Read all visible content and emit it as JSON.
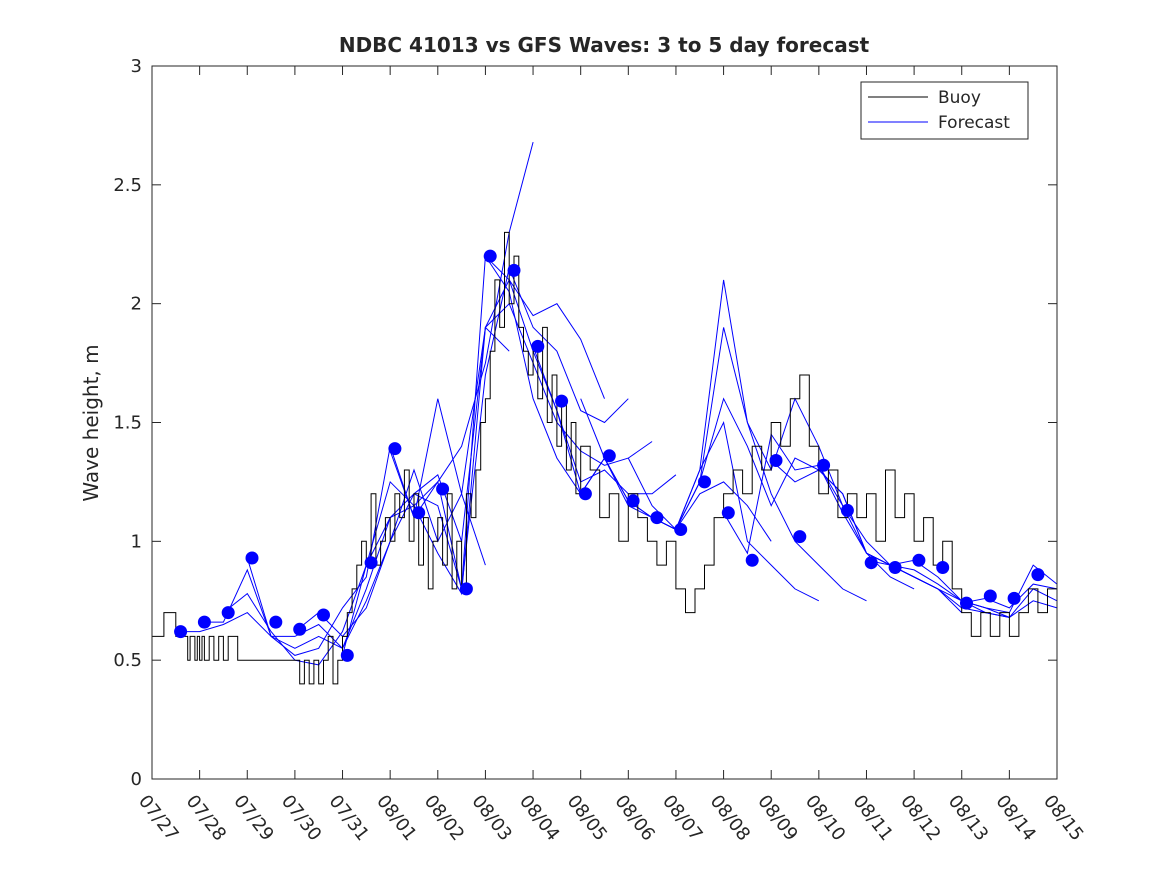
{
  "chart_data": {
    "type": "line",
    "title": "NDBC 41013 vs GFS Waves: 3 to 5 day forecast",
    "xlabel": "",
    "ylabel": "Wave height, m",
    "xlim": [
      0,
      19
    ],
    "ylim": [
      0,
      3
    ],
    "grid": false,
    "legend_position": "top-right",
    "x_ticks": [
      {
        "x": 0,
        "label": "07/27"
      },
      {
        "x": 1,
        "label": "07/28"
      },
      {
        "x": 2,
        "label": "07/29"
      },
      {
        "x": 3,
        "label": "07/30"
      },
      {
        "x": 4,
        "label": "07/31"
      },
      {
        "x": 5,
        "label": "08/01"
      },
      {
        "x": 6,
        "label": "08/02"
      },
      {
        "x": 7,
        "label": "08/03"
      },
      {
        "x": 8,
        "label": "08/04"
      },
      {
        "x": 9,
        "label": "08/05"
      },
      {
        "x": 10,
        "label": "08/06"
      },
      {
        "x": 11,
        "label": "08/07"
      },
      {
        "x": 12,
        "label": "08/08"
      },
      {
        "x": 13,
        "label": "08/09"
      },
      {
        "x": 14,
        "label": "08/10"
      },
      {
        "x": 15,
        "label": "08/11"
      },
      {
        "x": 16,
        "label": "08/12"
      },
      {
        "x": 17,
        "label": "08/13"
      },
      {
        "x": 18,
        "label": "08/14"
      },
      {
        "x": 19,
        "label": "08/15"
      }
    ],
    "y_ticks": [
      {
        "y": 0,
        "label": "0"
      },
      {
        "y": 0.5,
        "label": "0.5"
      },
      {
        "y": 1,
        "label": "1"
      },
      {
        "y": 1.5,
        "label": "1.5"
      },
      {
        "y": 2,
        "label": "2"
      },
      {
        "y": 2.5,
        "label": "2.5"
      },
      {
        "y": 3,
        "label": "3"
      }
    ],
    "legend": [
      {
        "label": "Buoy",
        "color": "#000000"
      },
      {
        "label": "Forecast",
        "color": "#0000ff"
      }
    ],
    "buoy": {
      "color": "#000000",
      "x": [
        0,
        0.25,
        0.5,
        0.7,
        0.75,
        0.8,
        0.9,
        0.95,
        1.0,
        1.05,
        1.1,
        1.2,
        1.3,
        1.4,
        1.5,
        1.6,
        1.8,
        2.0,
        2.2,
        2.5,
        2.8,
        3.0,
        3.1,
        3.2,
        3.3,
        3.4,
        3.5,
        3.6,
        3.7,
        3.8,
        3.9,
        4.0,
        4.1,
        4.2,
        4.3,
        4.4,
        4.5,
        4.6,
        4.7,
        4.8,
        4.9,
        5.0,
        5.1,
        5.2,
        5.3,
        5.4,
        5.5,
        5.6,
        5.7,
        5.8,
        5.9,
        6.0,
        6.1,
        6.2,
        6.3,
        6.4,
        6.5,
        6.6,
        6.7,
        6.8,
        6.9,
        7.0,
        7.1,
        7.2,
        7.3,
        7.4,
        7.5,
        7.6,
        7.7,
        7.8,
        7.9,
        8.0,
        8.1,
        8.2,
        8.3,
        8.4,
        8.5,
        8.6,
        8.7,
        8.8,
        8.9,
        9.0,
        9.2,
        9.4,
        9.6,
        9.8,
        10.0,
        10.2,
        10.4,
        10.6,
        10.8,
        11.0,
        11.2,
        11.4,
        11.6,
        11.8,
        12.0,
        12.2,
        12.4,
        12.6,
        12.8,
        13.0,
        13.2,
        13.4,
        13.6,
        13.8,
        14.0,
        14.2,
        14.4,
        14.6,
        14.8,
        15.0,
        15.2,
        15.4,
        15.6,
        15.8,
        16.0,
        16.2,
        16.4,
        16.6,
        16.8,
        17.0,
        17.2,
        17.4,
        17.6,
        17.8,
        18.0,
        18.2,
        18.4,
        18.6,
        18.8,
        19.0
      ],
      "y": [
        0.6,
        0.7,
        0.6,
        0.6,
        0.5,
        0.6,
        0.5,
        0.6,
        0.5,
        0.6,
        0.5,
        0.6,
        0.5,
        0.6,
        0.5,
        0.6,
        0.5,
        0.5,
        0.5,
        0.5,
        0.5,
        0.5,
        0.4,
        0.5,
        0.4,
        0.5,
        0.4,
        0.5,
        0.6,
        0.4,
        0.5,
        0.6,
        0.7,
        0.8,
        0.9,
        1.0,
        0.9,
        1.2,
        0.9,
        1.0,
        1.1,
        1.0,
        1.2,
        1.1,
        1.3,
        1.0,
        1.2,
        0.9,
        1.1,
        0.8,
        1.0,
        1.1,
        0.9,
        1.2,
        0.8,
        1.0,
        0.8,
        1.2,
        1.1,
        1.3,
        1.5,
        1.6,
        1.8,
        2.1,
        1.9,
        2.3,
        2.0,
        2.2,
        1.9,
        1.8,
        1.7,
        1.8,
        1.6,
        1.9,
        1.5,
        1.7,
        1.4,
        1.6,
        1.3,
        1.5,
        1.2,
        1.4,
        1.3,
        1.1,
        1.2,
        1.0,
        1.2,
        1.1,
        1.0,
        0.9,
        1.0,
        0.8,
        0.7,
        0.8,
        0.9,
        1.1,
        1.2,
        1.3,
        1.2,
        1.4,
        1.3,
        1.5,
        1.4,
        1.6,
        1.7,
        1.4,
        1.2,
        1.3,
        1.1,
        1.2,
        1.1,
        1.2,
        1.0,
        1.3,
        1.1,
        1.2,
        1.0,
        1.1,
        0.9,
        1.0,
        0.8,
        0.7,
        0.6,
        0.7,
        0.6,
        0.7,
        0.6,
        0.7,
        0.8,
        0.7,
        0.8,
        0.7
      ]
    },
    "forecasts": [
      {
        "x": [
          0.5,
          1.0,
          1.5,
          2.0,
          2.5,
          3.0,
          3.5,
          4.0,
          4.5,
          5.0,
          5.5,
          6.0,
          6.5,
          7.0
        ],
        "y": [
          0.62,
          0.62,
          0.65,
          0.7,
          0.6,
          0.55,
          0.6,
          0.55,
          0.75,
          1.0,
          1.3,
          1.0,
          1.2,
          0.9
        ]
      },
      {
        "x": [
          1.0,
          1.5,
          2.0,
          2.5,
          3.0,
          3.5,
          4.0,
          4.5,
          5.0,
          5.5,
          6.0,
          6.5,
          7.0,
          7.5
        ],
        "y": [
          0.66,
          0.66,
          0.88,
          0.6,
          0.52,
          0.55,
          0.72,
          0.85,
          1.4,
          1.1,
          1.6,
          1.2,
          1.9,
          1.8
        ]
      },
      {
        "x": [
          1.5,
          2.0,
          2.5,
          3.0,
          3.5,
          4.0,
          4.5,
          5.0,
          5.5,
          6.0,
          6.5,
          7.0,
          7.5,
          8.0
        ],
        "y": [
          0.7,
          0.78,
          0.62,
          0.5,
          0.48,
          0.62,
          0.9,
          1.25,
          1.15,
          1.25,
          1.4,
          1.75,
          2.3,
          2.68
        ]
      },
      {
        "x": [
          2.0,
          2.5,
          3.0,
          3.5,
          4.0,
          4.5,
          5.0,
          5.5,
          6.0,
          6.5,
          7.0,
          7.5,
          8.0,
          8.5,
          9.0,
          9.5
        ],
        "y": [
          0.93,
          0.6,
          0.6,
          0.65,
          0.55,
          0.8,
          1.1,
          1.15,
          0.95,
          0.78,
          1.9,
          2.1,
          1.95,
          2.0,
          1.85,
          1.6
        ]
      },
      {
        "x": [
          3.0,
          3.5,
          4.0,
          4.5,
          5.0,
          5.5,
          6.0,
          6.5,
          7.0,
          7.5,
          8.0,
          8.5,
          9.0,
          9.5,
          10.0
        ],
        "y": [
          0.62,
          0.7,
          0.6,
          0.72,
          1.0,
          1.2,
          1.15,
          0.8,
          1.7,
          2.15,
          1.9,
          1.8,
          1.55,
          1.5,
          1.6
        ]
      },
      {
        "x": [
          4.0,
          4.5,
          5.0,
          5.5,
          6.0,
          6.5,
          7.0,
          7.5,
          8.0,
          8.5,
          9.0,
          9.5,
          10.0,
          10.5
        ],
        "y": [
          0.52,
          0.9,
          1.1,
          1.2,
          1.28,
          1.0,
          1.9,
          2.0,
          1.75,
          1.5,
          1.38,
          1.32,
          1.35,
          1.42
        ]
      },
      {
        "x": [
          5.0,
          5.5,
          6.0,
          6.5,
          7.0,
          7.5,
          8.0,
          8.5,
          9.0,
          9.5,
          10.0,
          10.5,
          11.0
        ],
        "y": [
          1.38,
          1.1,
          1.25,
          0.8,
          2.2,
          2.1,
          1.8,
          1.55,
          1.25,
          1.3,
          1.2,
          1.2,
          1.28
        ]
      },
      {
        "x": [
          7.0,
          7.5,
          8.0,
          8.5,
          9.0,
          9.5,
          10.0,
          10.5,
          11.0,
          11.5,
          12.0,
          12.5,
          13.0
        ],
        "y": [
          2.2,
          2.05,
          1.6,
          1.35,
          1.2,
          1.35,
          1.15,
          1.1,
          1.05,
          1.2,
          1.25,
          1.15,
          1.0
        ]
      },
      {
        "x": [
          8.0,
          8.5,
          9.0,
          9.5,
          10.0,
          10.5,
          11.0,
          11.5,
          12.0,
          12.5,
          13.0,
          13.5,
          14.0
        ],
        "y": [
          1.82,
          1.55,
          1.2,
          1.35,
          1.17,
          1.1,
          1.05,
          1.3,
          1.5,
          1.0,
          0.9,
          0.8,
          0.75
        ]
      },
      {
        "x": [
          9.0,
          9.5,
          10.0,
          10.5,
          11.0,
          11.5,
          12.0,
          12.5,
          13.0,
          13.5,
          14.0,
          14.5,
          15.0
        ],
        "y": [
          1.6,
          1.35,
          1.17,
          1.1,
          1.05,
          1.25,
          1.9,
          1.5,
          1.2,
          1.0,
          0.9,
          0.8,
          0.75
        ]
      },
      {
        "x": [
          10.0,
          10.5,
          11.0,
          11.5,
          12.0,
          12.5,
          13.0,
          13.5,
          14.0,
          14.5,
          15.0,
          15.5,
          16.0
        ],
        "y": [
          1.35,
          1.15,
          1.05,
          1.3,
          2.1,
          1.5,
          1.3,
          1.6,
          1.4,
          1.15,
          0.95,
          0.85,
          0.8
        ]
      },
      {
        "x": [
          11.0,
          11.5,
          12.0,
          12.5,
          13.0,
          13.5,
          14.0,
          14.5,
          15.0,
          15.5,
          16.0,
          16.5,
          17.0
        ],
        "y": [
          1.05,
          1.25,
          1.6,
          1.4,
          1.15,
          1.35,
          1.3,
          1.2,
          0.95,
          0.9,
          0.85,
          0.8,
          0.7
        ]
      },
      {
        "x": [
          12.0,
          12.5,
          13.0,
          13.5,
          14.0,
          14.5,
          15.0,
          15.5,
          16.0,
          16.5,
          17.0,
          17.5,
          18.0
        ],
        "y": [
          1.12,
          0.95,
          1.45,
          1.3,
          1.32,
          1.15,
          1.0,
          0.9,
          0.85,
          0.8,
          0.72,
          0.7,
          0.68
        ]
      },
      {
        "x": [
          13.0,
          13.5,
          14.0,
          14.5,
          15.0,
          15.5,
          16.0,
          16.5,
          17.0,
          17.5,
          18.0,
          18.5,
          19.0
        ],
        "y": [
          1.34,
          1.25,
          1.3,
          1.2,
          0.95,
          0.9,
          0.85,
          0.8,
          0.75,
          0.7,
          0.68,
          0.8,
          0.75
        ]
      },
      {
        "x": [
          14.0,
          14.5,
          15.0,
          15.5,
          16.0,
          16.5,
          17.0,
          17.5,
          18.0,
          18.5,
          19.0
        ],
        "y": [
          1.32,
          1.12,
          0.95,
          0.9,
          0.88,
          0.82,
          0.75,
          0.72,
          0.68,
          0.75,
          0.72
        ]
      },
      {
        "x": [
          15.0,
          15.5,
          16.0,
          16.5,
          17.0,
          17.5,
          18.0,
          18.5,
          19.0
        ],
        "y": [
          0.92,
          0.9,
          0.92,
          0.85,
          0.75,
          0.72,
          0.7,
          0.9,
          0.82
        ]
      },
      {
        "x": [
          17.0,
          17.5,
          18.0,
          18.5,
          19.0
        ],
        "y": [
          0.74,
          0.76,
          0.72,
          0.82,
          0.8
        ]
      }
    ],
    "markers": {
      "x": [
        0.6,
        1.1,
        1.6,
        2.1,
        2.6,
        3.1,
        3.6,
        4.1,
        4.6,
        5.1,
        5.6,
        6.1,
        6.6,
        7.1,
        7.6,
        8.1,
        8.6,
        9.1,
        9.6,
        10.1,
        10.6,
        11.1,
        11.6,
        12.1,
        12.6,
        13.1,
        13.6,
        14.1,
        14.6,
        15.1,
        15.6,
        16.1,
        16.6,
        17.1,
        17.6,
        18.1,
        18.6
      ],
      "y": [
        0.62,
        0.66,
        0.7,
        0.93,
        0.66,
        0.63,
        0.69,
        0.52,
        0.91,
        1.39,
        1.12,
        1.22,
        0.8,
        2.2,
        2.14,
        1.82,
        1.59,
        1.2,
        1.36,
        1.17,
        1.1,
        1.05,
        1.25,
        1.12,
        0.92,
        1.34,
        1.02,
        1.32,
        1.13,
        0.91,
        0.89,
        0.92,
        0.89,
        0.74,
        0.77,
        0.76,
        0.86
      ]
    }
  }
}
